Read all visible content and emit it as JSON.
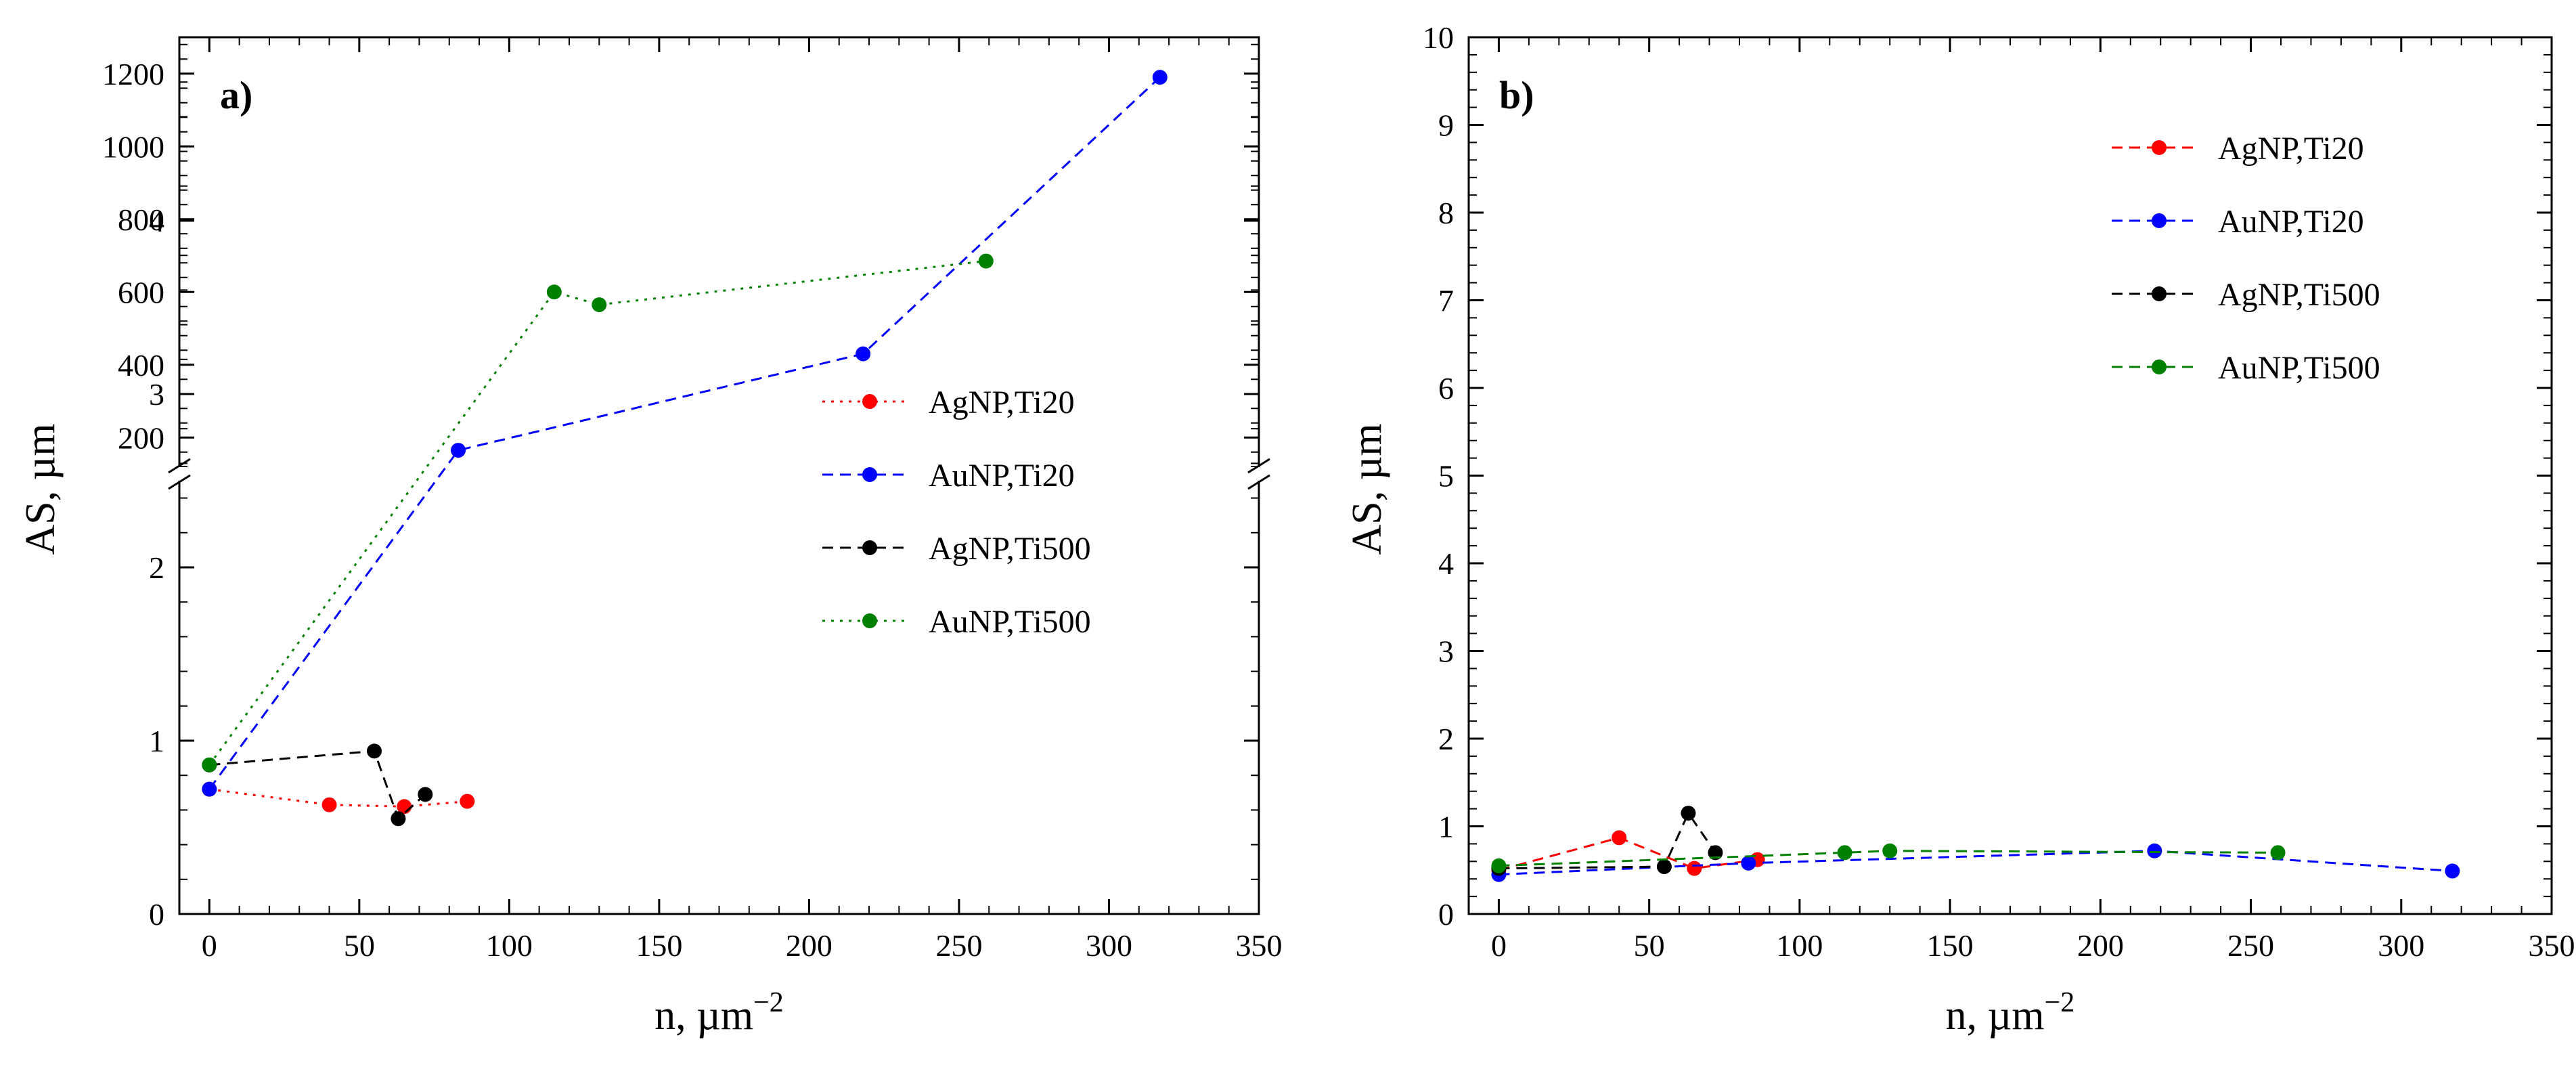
{
  "colors": {
    "red": "#ff0000",
    "blue": "#0000ff",
    "black": "#000000",
    "green": "#008000"
  },
  "chart_data": [
    {
      "type": "line",
      "panel_label": "a)",
      "xlabel": "n, µm",
      "xlabel_exponent": "−2",
      "ylabel": "AS, µm",
      "xlim": [
        -10,
        350
      ],
      "x_ticks": [
        0,
        50,
        100,
        150,
        200,
        250,
        300,
        350
      ],
      "y_axis_broken": true,
      "lower_ylim": [
        0,
        5
      ],
      "lower_y_ticks": [
        0,
        1,
        2,
        3,
        4
      ],
      "upper_ylim": [
        100,
        1300
      ],
      "upper_y_ticks": [
        200,
        400,
        600,
        800,
        1000,
        1200
      ],
      "legend_position": "center-right",
      "series": [
        {
          "name": "AgNP,Ti20",
          "color": "red",
          "line_style": "dotted",
          "x": [
            0,
            40,
            65,
            86
          ],
          "y": [
            0.72,
            0.63,
            0.62,
            0.65
          ]
        },
        {
          "name": "AuNP,Ti20",
          "color": "blue",
          "line_style": "dashed",
          "x": [
            0,
            83,
            218,
            317
          ],
          "y": [
            0.72,
            165,
            430,
            1190
          ]
        },
        {
          "name": "AgNP,Ti500",
          "color": "black",
          "line_style": "dashed",
          "x": [
            0,
            55,
            63,
            72
          ],
          "y": [
            0.86,
            0.94,
            0.55,
            0.69
          ]
        },
        {
          "name": "AuNP,Ti500",
          "color": "green",
          "line_style": "dotted",
          "x": [
            0,
            115,
            130,
            259
          ],
          "y": [
            0.86,
            600,
            565,
            685
          ]
        }
      ]
    },
    {
      "type": "line",
      "panel_label": "b)",
      "xlabel": "n, µm",
      "xlabel_exponent": "−2",
      "ylabel": "AS, µm",
      "xlim": [
        -10,
        350
      ],
      "x_ticks": [
        0,
        50,
        100,
        150,
        200,
        250,
        300,
        350
      ],
      "ylim": [
        0,
        10
      ],
      "y_ticks": [
        0,
        1,
        2,
        3,
        4,
        5,
        6,
        7,
        8,
        9,
        10
      ],
      "legend_position": "top-right",
      "series": [
        {
          "name": "AgNP,Ti20",
          "color": "red",
          "line_style": "dashed",
          "x": [
            0,
            40,
            65,
            86
          ],
          "y": [
            0.5,
            0.87,
            0.52,
            0.62
          ]
        },
        {
          "name": "AuNP,Ti20",
          "color": "blue",
          "line_style": "dashed",
          "x": [
            0,
            83,
            218,
            317
          ],
          "y": [
            0.45,
            0.58,
            0.72,
            0.49
          ]
        },
        {
          "name": "AgNP,Ti500",
          "color": "black",
          "line_style": "dashed",
          "x": [
            0,
            55,
            63,
            72
          ],
          "y": [
            0.52,
            0.54,
            1.15,
            0.7
          ]
        },
        {
          "name": "AuNP,Ti500",
          "color": "green",
          "line_style": "dashed",
          "x": [
            0,
            115,
            130,
            259
          ],
          "y": [
            0.55,
            0.7,
            0.72,
            0.7
          ]
        }
      ]
    }
  ]
}
